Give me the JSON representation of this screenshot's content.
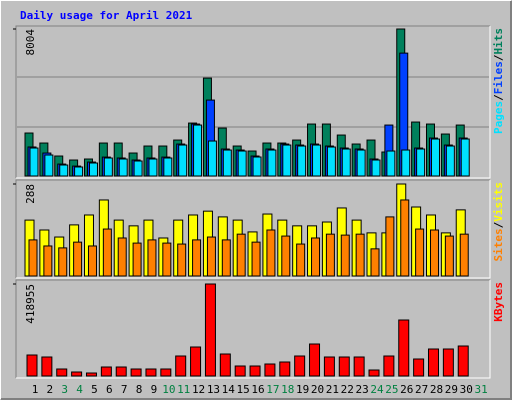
{
  "title": "Daily usage for April 2021",
  "chart_data": [
    {
      "type": "bar",
      "ylim": [
        0,
        8004
      ],
      "yticks": [
        8004
      ],
      "legend_separator": "/",
      "series": [
        {
          "name": "Pages",
          "color": "#00e0ff",
          "values": [
            1523,
            1142,
            598,
            490,
            707,
            979,
            925,
            816,
            925,
            979,
            1686,
            2774,
            1904,
            1414,
            1360,
            1034,
            1414,
            1686,
            1632,
            1686,
            1578,
            1469,
            1414,
            870,
            1360,
            1414,
            1469,
            2013,
            1632,
            2013,
            0
          ]
        },
        {
          "name": "Files",
          "color": "#0040ff",
          "values": [
            1580,
            1250,
            650,
            540,
            760,
            1030,
            980,
            870,
            980,
            1030,
            1740,
            2829,
            4134,
            1469,
            1414,
            1088,
            1469,
            1740,
            1686,
            1740,
            1632,
            1523,
            1469,
            925,
            2774,
            6691,
            1523,
            2067,
            1686,
            2067,
            0
          ]
        },
        {
          "name": "Hits",
          "color": "#00805c",
          "values": [
            2340,
            1795,
            1088,
            870,
            925,
            1795,
            1795,
            1251,
            1632,
            1632,
            1958,
            2883,
            5331,
            2611,
            1632,
            1360,
            1795,
            1795,
            1958,
            2829,
            2829,
            2230,
            1741,
            1958,
            1306,
            8004,
            2938,
            2829,
            2285,
            2774,
            0
          ]
        }
      ]
    },
    {
      "type": "bar",
      "ylim": [
        0,
        288
      ],
      "yticks": [
        288
      ],
      "legend_separator": "/",
      "series": [
        {
          "name": "Sites",
          "color": "#ff8000",
          "values": [
            113,
            94,
            88,
            106,
            94,
            147,
            119,
            103,
            113,
            103,
            100,
            113,
            122,
            113,
            131,
            106,
            144,
            125,
            100,
            119,
            131,
            128,
            131,
            85,
            185,
            238,
            147,
            144,
            125,
            131,
            0
          ]
        },
        {
          "name": "Visits",
          "color": "#ffff00",
          "values": [
            175,
            144,
            122,
            160,
            191,
            238,
            175,
            157,
            175,
            119,
            175,
            191,
            203,
            185,
            175,
            138,
            194,
            175,
            157,
            157,
            169,
            213,
            175,
            135,
            135,
            288,
            216,
            191,
            135,
            207,
            0
          ]
        }
      ]
    },
    {
      "type": "bar",
      "ylim": [
        0,
        418955
      ],
      "yticks": [
        418955
      ],
      "categories": [
        "1",
        "2",
        "3",
        "4",
        "5",
        "6",
        "7",
        "8",
        "9",
        "10",
        "11",
        "12",
        "13",
        "14",
        "15",
        "16",
        "17",
        "18",
        "19",
        "20",
        "21",
        "22",
        "23",
        "24",
        "25",
        "26",
        "27",
        "28",
        "29",
        "30",
        "31"
      ],
      "category_colors": [
        "#000000",
        "#000000",
        "#008040",
        "#008040",
        "#000000",
        "#000000",
        "#000000",
        "#000000",
        "#000000",
        "#008040",
        "#008040",
        "#000000",
        "#000000",
        "#000000",
        "#000000",
        "#000000",
        "#008040",
        "#008040",
        "#000000",
        "#000000",
        "#000000",
        "#000000",
        "#000000",
        "#008040",
        "#008040",
        "#000000",
        "#000000",
        "#000000",
        "#000000",
        "#000000",
        "#008040"
      ],
      "series": [
        {
          "name": "KBytes",
          "color": "#ff0000",
          "values": [
            95634,
            86526,
            31878,
            18216,
            13662,
            40986,
            40986,
            31878,
            31878,
            31878,
            91080,
            132066,
            418955,
            100188,
            45540,
            45540,
            54648,
            63756,
            91080,
            145728,
            86526,
            86526,
            86526,
            27324,
            91080,
            255024,
            77418,
            122958,
            122958,
            136620,
            0
          ]
        }
      ]
    }
  ]
}
